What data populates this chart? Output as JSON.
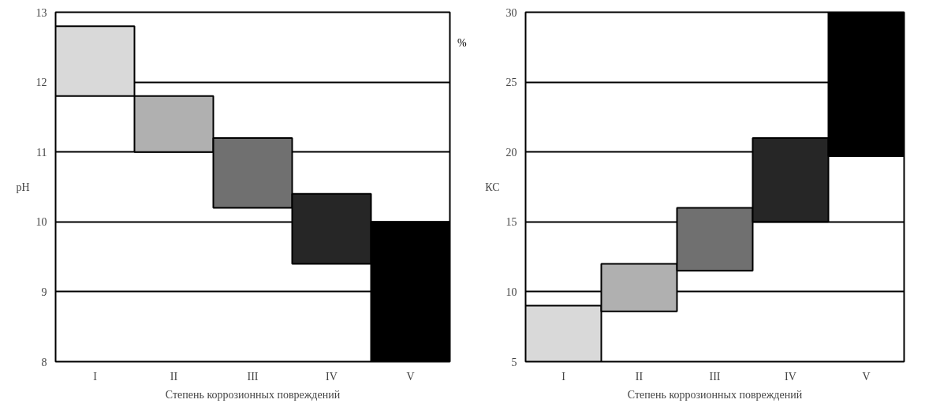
{
  "chart_data": [
    {
      "type": "bar",
      "xlabel": "Степень коррозионных повреждений",
      "ylabel": "pH",
      "categories": [
        "I",
        "II",
        "III",
        "IV",
        "V"
      ],
      "values": [
        1.0,
        0.8,
        1.0,
        1.0,
        2.0
      ],
      "base": [
        11.8,
        11.0,
        10.2,
        9.4,
        8
      ],
      "colors": [
        "#d9d9d9",
        "#b0b0b0",
        "#707070",
        "#262626",
        "#000000"
      ],
      "ylim": [
        8,
        13
      ],
      "yticks": [
        8,
        9,
        10,
        11,
        12,
        13
      ],
      "grid": "y"
    },
    {
      "type": "bar",
      "xlabel": "Степень коррозионных повреждений",
      "ylabel": "КС",
      "annotations": [
        "%"
      ],
      "categories": [
        "I",
        "II",
        "III",
        "IV",
        "V"
      ],
      "values": [
        4,
        3.4,
        4.5,
        6,
        10.3
      ],
      "base": [
        5,
        8.6,
        11.5,
        15,
        19.7
      ],
      "colors": [
        "#d9d9d9",
        "#b0b0b0",
        "#707070",
        "#262626",
        "#000000"
      ],
      "ylim": [
        5,
        30
      ],
      "yticks": [
        5,
        10,
        15,
        20,
        25,
        30
      ],
      "grid": "y"
    }
  ]
}
